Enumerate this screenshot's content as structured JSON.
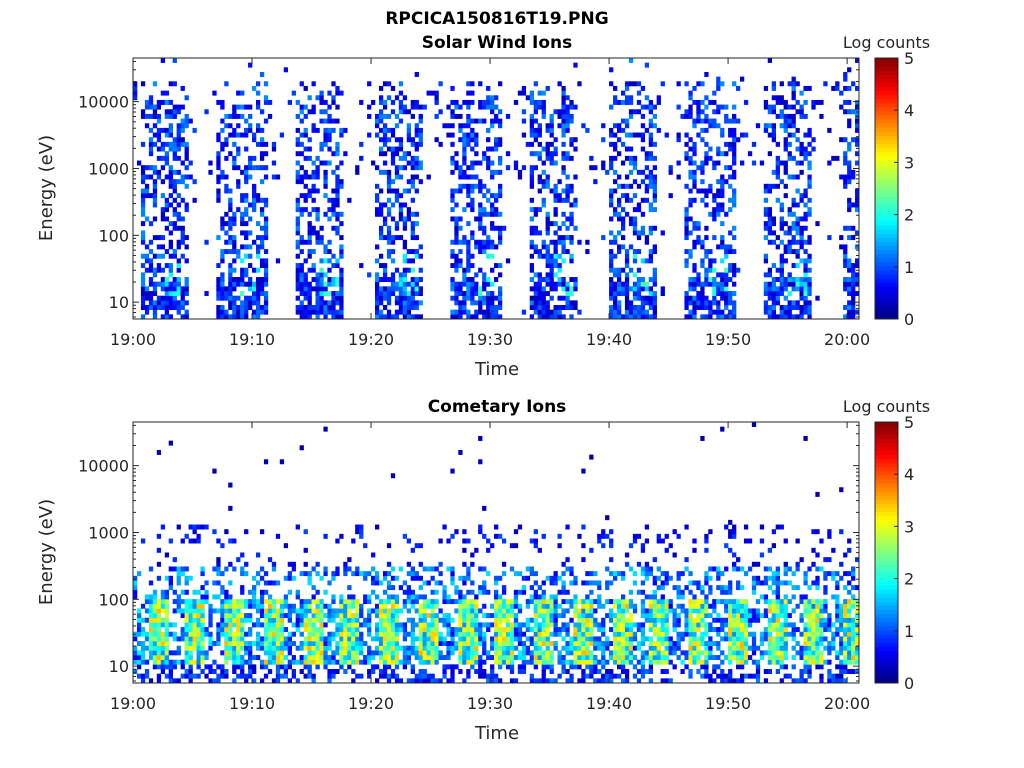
{
  "figure_title": "RPCICA150816T19.PNG",
  "chart_data": [
    {
      "type": "heatmap",
      "title": "Solar Wind Ions",
      "xlabel": "Time",
      "ylabel": "Energy (eV)",
      "x_tick_labels": [
        "19:00",
        "19:10",
        "19:20",
        "19:30",
        "19:40",
        "19:50",
        "20:00"
      ],
      "x_range_minutes": [
        0,
        61
      ],
      "y_tick_labels": [
        "10",
        "100",
        "1000",
        "10000"
      ],
      "y_scale": "log",
      "ylim": [
        5.6,
        45000
      ],
      "colorbar": {
        "label": "Log counts",
        "ticks": [
          "0",
          "1",
          "2",
          "3",
          "4",
          "5"
        ],
        "range": [
          0,
          5
        ],
        "colormap": "jet"
      },
      "pattern": "periodic sweeps of low counts (mostly 0–1), bands about 4 minutes wide roughly every 6.5 minutes, sparse scatter up to ~40000 eV, weak peaks (~2) near 20–40 eV"
    },
    {
      "type": "heatmap",
      "title": "Cometary Ions",
      "xlabel": "Time",
      "ylabel": "Energy (eV)",
      "x_tick_labels": [
        "19:00",
        "19:10",
        "19:20",
        "19:30",
        "19:40",
        "19:50",
        "20:00"
      ],
      "x_range_minutes": [
        0,
        61
      ],
      "y_tick_labels": [
        "10",
        "100",
        "1000",
        "10000"
      ],
      "y_scale": "log",
      "ylim": [
        5.6,
        45000
      ],
      "colorbar": {
        "label": "Log counts",
        "ticks": [
          "0",
          "1",
          "2",
          "3",
          "4",
          "5"
        ],
        "range": [
          0,
          5
        ],
        "colormap": "jet"
      },
      "pattern": "dense population at 10–100 eV with peaks of 3–4 near 20–40 eV repeating every ~3.2 minutes, sparse counts up to ~1000 eV and isolated points above"
    }
  ]
}
